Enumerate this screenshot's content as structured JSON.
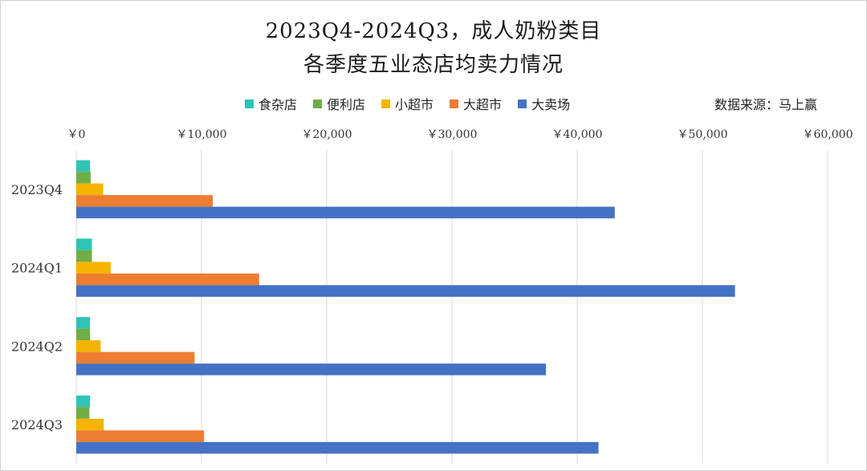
{
  "title_line1": "2023Q4-2024Q3，成人奶粉类目",
  "title_line2": "各季度五业态店均卖力情况",
  "source": "数据来源：马上赢",
  "chart_data": {
    "type": "bar",
    "orientation": "horizontal",
    "categories": [
      "2023Q4",
      "2024Q1",
      "2024Q2",
      "2024Q3"
    ],
    "series": [
      {
        "name": "食杂店",
        "color": "#2EC4B6",
        "values": [
          1100,
          1250,
          1100,
          1100
        ]
      },
      {
        "name": "便利店",
        "color": "#70AD47",
        "values": [
          1150,
          1250,
          1100,
          1050
        ]
      },
      {
        "name": "小超市",
        "color": "#F4B400",
        "values": [
          2150,
          2750,
          1950,
          2200
        ]
      },
      {
        "name": "大超市",
        "color": "#ED7D31",
        "values": [
          10900,
          14600,
          9450,
          10200
        ]
      },
      {
        "name": "大卖场",
        "color": "#4472C4",
        "values": [
          43000,
          52600,
          37500,
          41700
        ]
      }
    ],
    "xlim": [
      0,
      60000
    ],
    "xticks": [
      "￥0",
      "￥10,000",
      "￥20,000",
      "￥30,000",
      "￥40,000",
      "￥50,000",
      "￥60,000"
    ],
    "grid": true,
    "legend_position": "top"
  }
}
